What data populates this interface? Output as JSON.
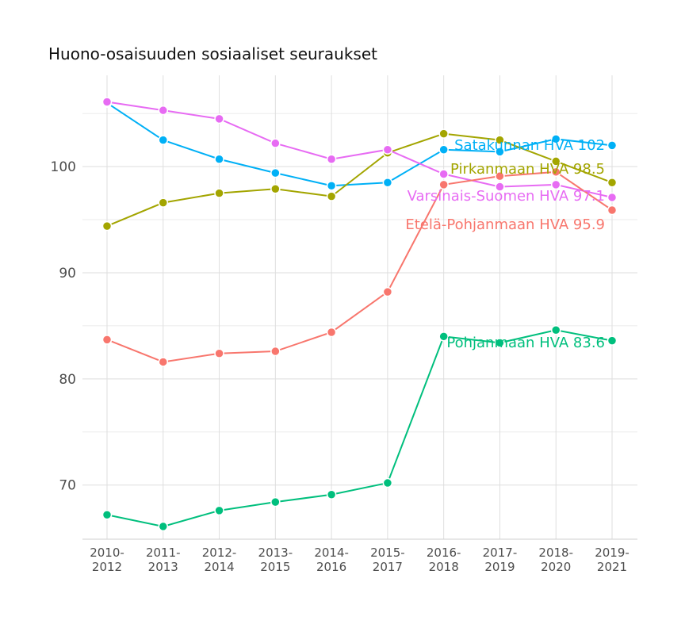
{
  "chart_data": {
    "type": "line",
    "title": "Huono-osaisuuden sosiaaliset seuraukset",
    "xlabel": "",
    "ylabel": "",
    "categories": [
      "2010-2012",
      "2011-2013",
      "2012-2014",
      "2013-2015",
      "2014-2016",
      "2015-2017",
      "2016-2018",
      "2017-2019",
      "2018-2020",
      "2019-2021"
    ],
    "ylim": [
      64.9,
      108.6
    ],
    "yticks": [
      70,
      80,
      90,
      100
    ],
    "grid": true,
    "series": [
      {
        "name": "Satakunnan HVA",
        "end_label": "Satakunnan HVA 102",
        "color": "#00B0F6",
        "values": [
          106.0,
          102.5,
          100.7,
          99.4,
          98.2,
          98.5,
          101.6,
          101.4,
          102.6,
          102.0
        ]
      },
      {
        "name": "Pirkanmaan HVA",
        "end_label": "Pirkanmaan HVA 98.5",
        "color": "#A3A500",
        "values": [
          94.4,
          96.6,
          97.5,
          97.9,
          97.2,
          101.3,
          103.1,
          102.5,
          100.5,
          98.5
        ]
      },
      {
        "name": "Varsinais-Suomen HVA",
        "end_label": "Varsinais-Suomen HVA 97.1",
        "color": "#E76BF3",
        "values": [
          106.1,
          105.3,
          104.5,
          102.2,
          100.7,
          101.6,
          99.3,
          98.1,
          98.3,
          97.1
        ]
      },
      {
        "name": "Etelä-Pohjanmaan HVA",
        "end_label": "Etelä-Pohjanmaan HVA 95.9",
        "color": "#F8766D",
        "values": [
          83.7,
          81.6,
          82.4,
          82.6,
          84.4,
          88.2,
          98.3,
          99.1,
          99.5,
          95.9
        ]
      },
      {
        "name": "Pohjanmaan HVA",
        "end_label": "Pohjanmaan HVA 83.6",
        "color": "#00BF7D",
        "values": [
          67.2,
          66.1,
          67.6,
          68.4,
          69.1,
          70.2,
          84.0,
          83.4,
          84.6,
          83.6
        ]
      }
    ]
  }
}
